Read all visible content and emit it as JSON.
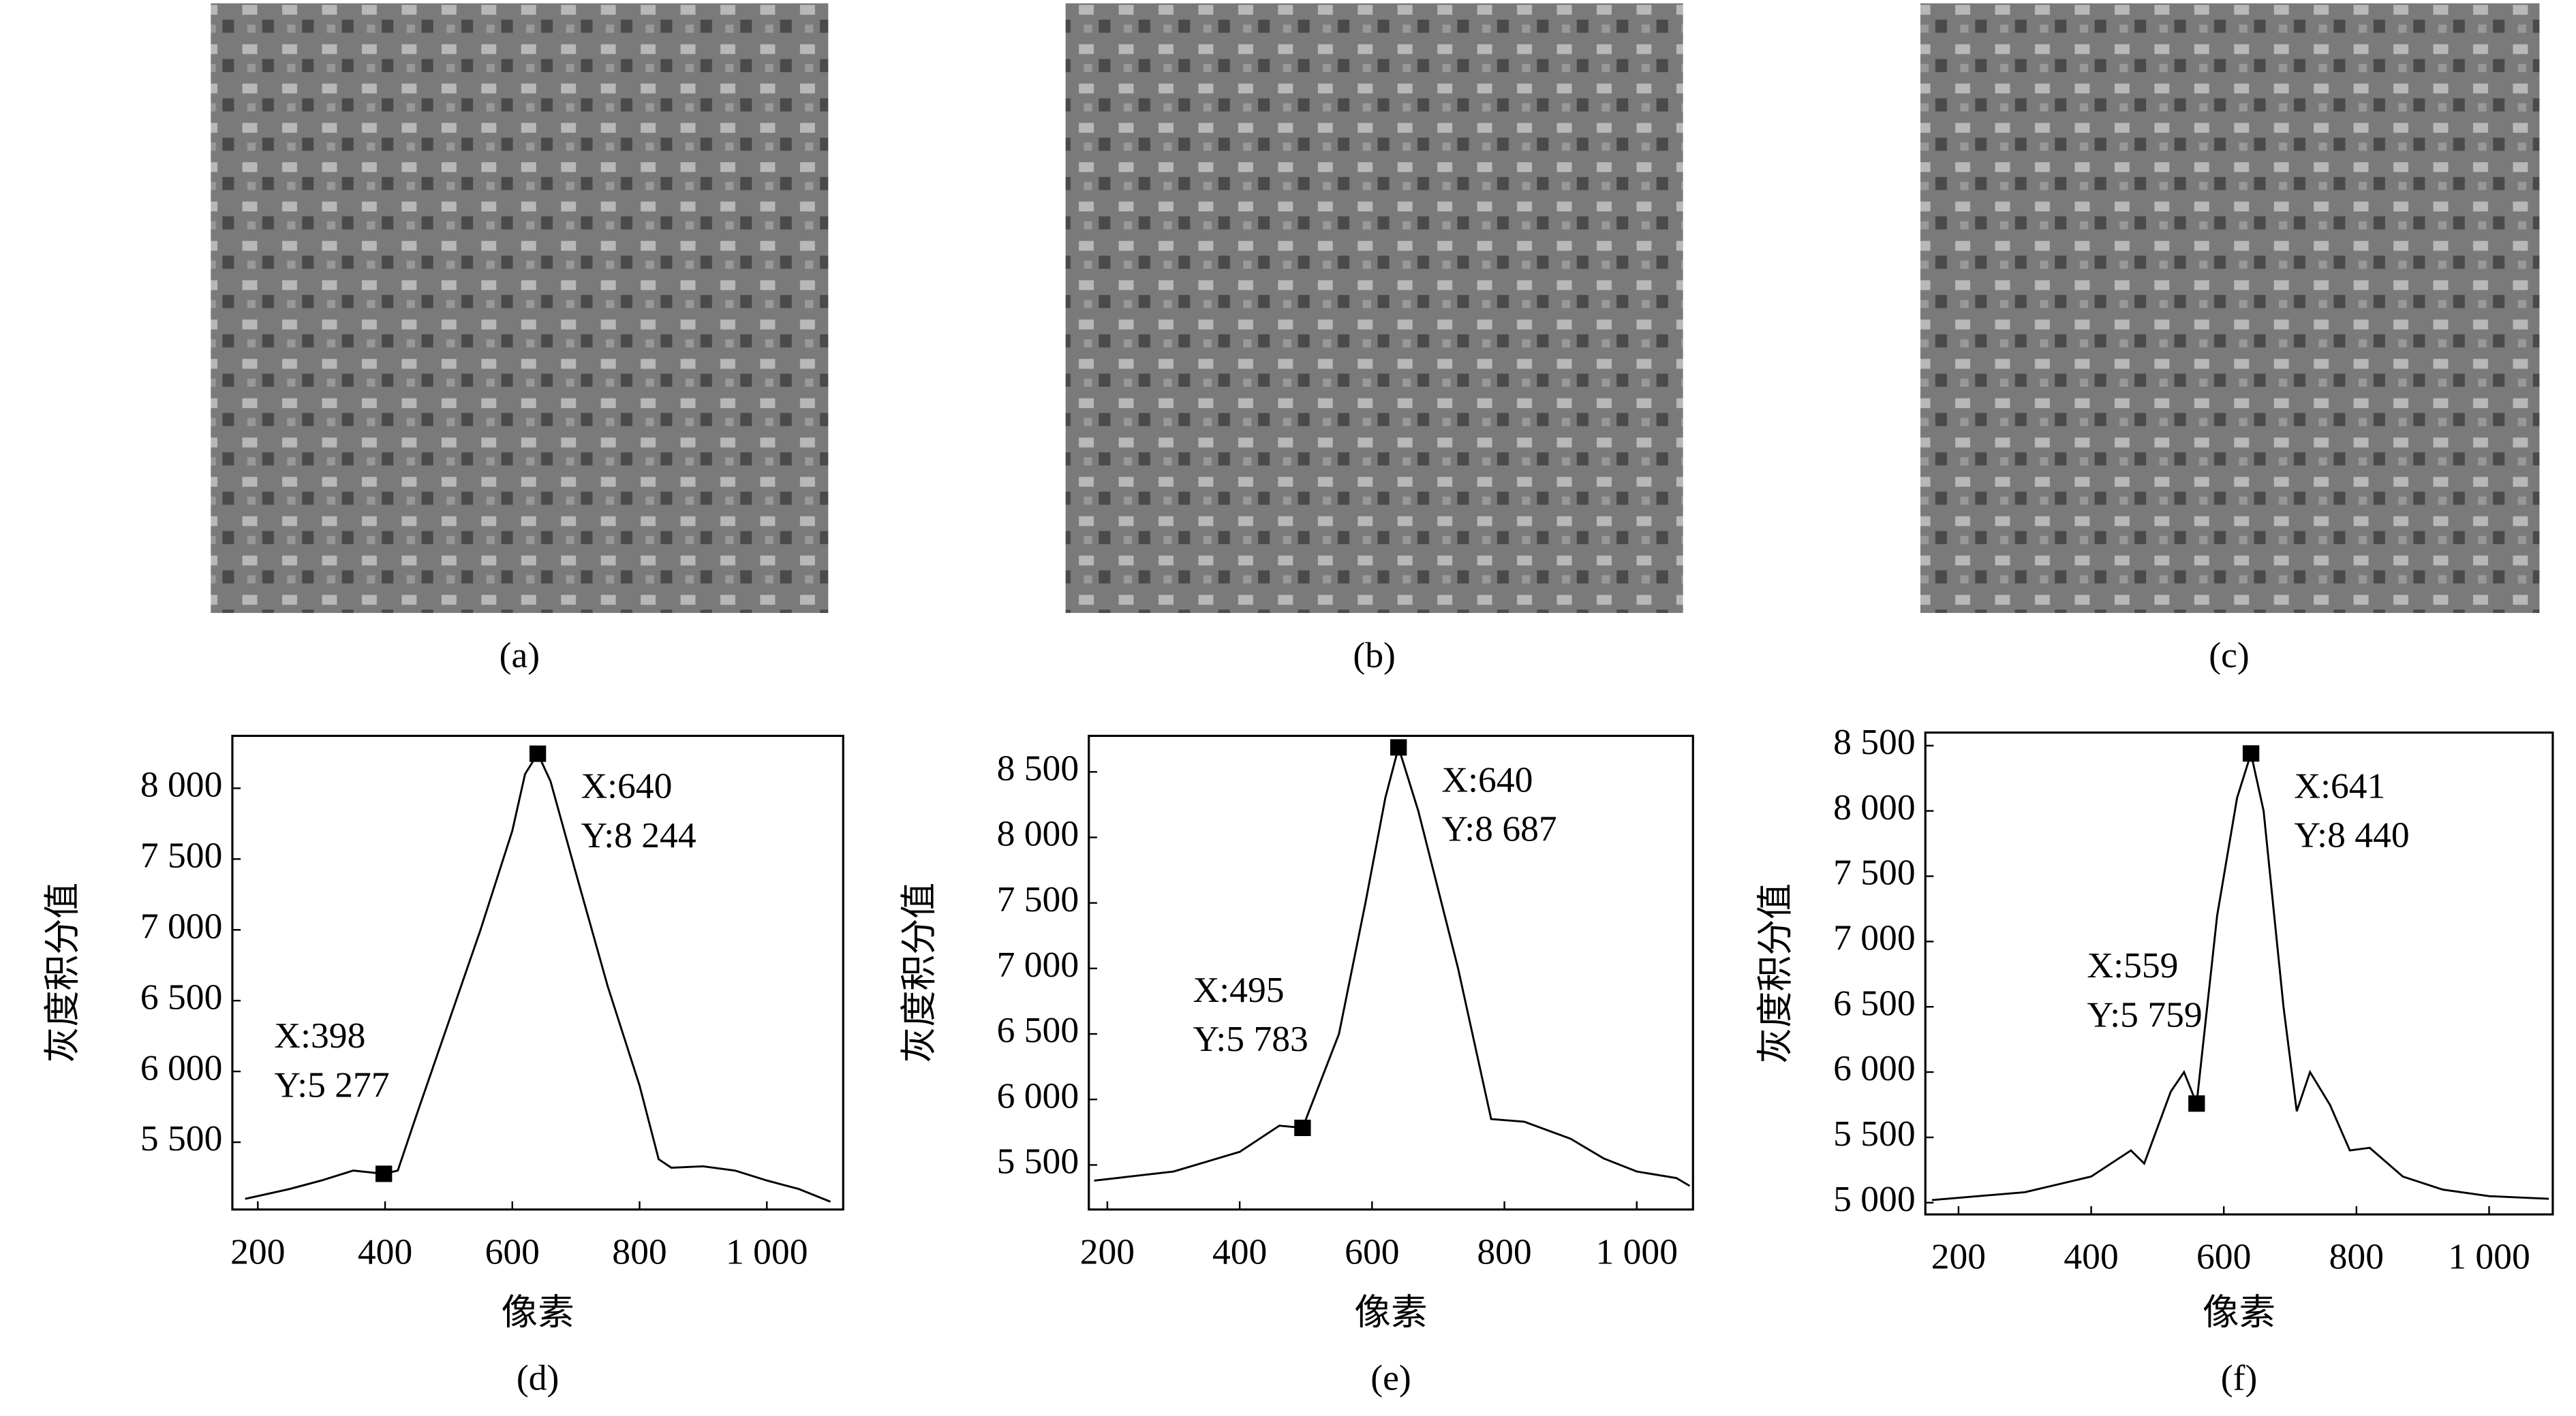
{
  "images": [
    {
      "caption": "(a)"
    },
    {
      "caption": "(b)"
    },
    {
      "caption": "(c)"
    }
  ],
  "chart_data": [
    {
      "type": "line",
      "caption": "(d)",
      "xlabel": "像素",
      "ylabel": "灰度积分值",
      "color": "#000000",
      "x": [
        180,
        250,
        300,
        350,
        398,
        420,
        450,
        500,
        550,
        600,
        620,
        640,
        660,
        700,
        750,
        800,
        830,
        850,
        900,
        950,
        1000,
        1050,
        1100
      ],
      "values": [
        5100,
        5170,
        5230,
        5300,
        5277,
        5300,
        5700,
        6350,
        7000,
        7700,
        8100,
        8244,
        8050,
        7400,
        6600,
        5900,
        5380,
        5320,
        5330,
        5300,
        5230,
        5170,
        5080
      ],
      "xlim": [
        160,
        1120
      ],
      "ylim": [
        5025,
        8370
      ],
      "xticks": [
        200,
        400,
        600,
        800,
        {
          "value": 1000,
          "label": "1 000"
        }
      ],
      "yticks": [
        {
          "value": 5500,
          "label": "5 500"
        },
        {
          "value": 6000,
          "label": "6 000"
        },
        {
          "value": 6500,
          "label": "6 500"
        },
        {
          "value": 7000,
          "label": "7 000"
        },
        {
          "value": 7500,
          "label": "7 500"
        },
        {
          "value": 8000,
          "label": "8 000"
        }
      ],
      "annotations": [
        {
          "x": 398,
          "y": 5277,
          "label_x": "X:398",
          "label_y": "Y:5 277"
        },
        {
          "x": 640,
          "y": 8244,
          "label_x": "X:640",
          "label_y": "Y:8 244"
        }
      ]
    },
    {
      "type": "line",
      "caption": "(e)",
      "xlabel": "像素",
      "ylabel": "灰度积分值",
      "color": "#000000",
      "x": [
        180,
        300,
        400,
        460,
        495,
        550,
        590,
        620,
        640,
        670,
        730,
        780,
        830,
        900,
        950,
        1000,
        1060,
        1080
      ],
      "values": [
        5380,
        5450,
        5600,
        5800,
        5783,
        6500,
        7500,
        8300,
        8687,
        8200,
        7000,
        5850,
        5830,
        5700,
        5550,
        5450,
        5400,
        5340
      ],
      "xlim": [
        172,
        1085
      ],
      "ylim": [
        5160,
        8775
      ],
      "xticks": [
        200,
        400,
        600,
        800,
        {
          "value": 1000,
          "label": "1 000"
        }
      ],
      "yticks": [
        {
          "value": 5500,
          "label": "5 500"
        },
        {
          "value": 6000,
          "label": "6 000"
        },
        {
          "value": 6500,
          "label": "6 500"
        },
        {
          "value": 7000,
          "label": "7 000"
        },
        {
          "value": 7500,
          "label": "7 500"
        },
        {
          "value": 8000,
          "label": "8 000"
        },
        {
          "value": 8500,
          "label": "8 500"
        }
      ],
      "annotations": [
        {
          "x": 495,
          "y": 5783,
          "label_x": "X:495",
          "label_y": "Y:5 783"
        },
        {
          "x": 640,
          "y": 8687,
          "label_x": "X:640",
          "label_y": "Y:8 687"
        }
      ]
    },
    {
      "type": "line",
      "caption": "(f)",
      "xlabel": "像素",
      "ylabel": "灰度积分值",
      "color": "#000000",
      "x": [
        160,
        300,
        400,
        460,
        480,
        520,
        540,
        559,
        590,
        620,
        641,
        660,
        690,
        710,
        730,
        760,
        790,
        820,
        870,
        930,
        1000,
        1090
      ],
      "values": [
        5020,
        5080,
        5200,
        5400,
        5300,
        5850,
        6000,
        5759,
        7200,
        8100,
        8440,
        8000,
        6500,
        5700,
        6000,
        5750,
        5400,
        5420,
        5200,
        5100,
        5050,
        5030
      ],
      "xlim": [
        150,
        1096
      ],
      "ylim": [
        4910,
        8600
      ],
      "xticks": [
        200,
        400,
        600,
        800,
        {
          "value": 1000,
          "label": "1 000"
        }
      ],
      "yticks": [
        {
          "value": 5000,
          "label": "5 000"
        },
        {
          "value": 5500,
          "label": "5 500"
        },
        {
          "value": 6000,
          "label": "6 000"
        },
        {
          "value": 6500,
          "label": "6 500"
        },
        {
          "value": 7000,
          "label": "7 000"
        },
        {
          "value": 7500,
          "label": "7 500"
        },
        {
          "value": 8000,
          "label": "8 000"
        },
        {
          "value": 8500,
          "label": "8 500"
        }
      ],
      "annotations": [
        {
          "x": 559,
          "y": 5759,
          "label_x": "X:559",
          "label_y": "Y:5 759"
        },
        {
          "x": 641,
          "y": 8440,
          "label_x": "X:641",
          "label_y": "Y:8 440"
        }
      ]
    }
  ]
}
